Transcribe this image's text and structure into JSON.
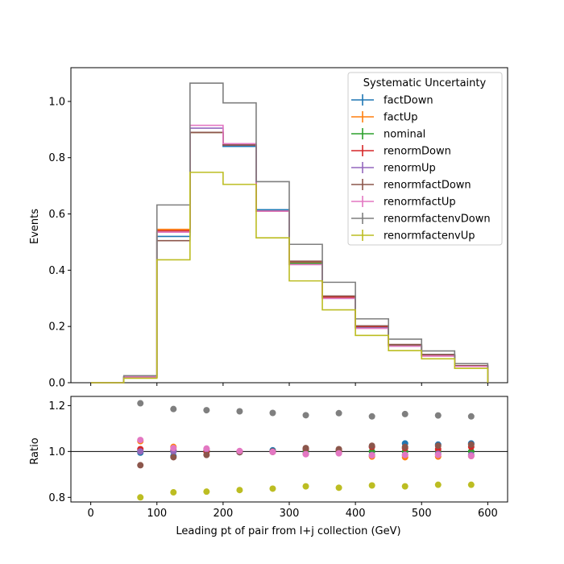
{
  "chart_data": {
    "type": "histogram_with_ratio",
    "main": {
      "ylabel": "Events",
      "ylim": [
        0,
        1.12
      ],
      "yticks": [
        "0.0",
        "0.2",
        "0.4",
        "0.6",
        "0.8",
        "1.0"
      ],
      "bin_edges": [
        0,
        50,
        100,
        150,
        200,
        250,
        300,
        350,
        400,
        450,
        500,
        550,
        600
      ],
      "series": [
        {
          "name": "factDown",
          "color": "#1f77b4",
          "values": [
            0.0,
            0.02,
            0.52,
            0.89,
            0.84,
            0.615,
            0.43,
            0.305,
            0.2,
            0.135,
            0.1,
            0.06
          ]
        },
        {
          "name": "factUp",
          "color": "#ff7f0e",
          "values": [
            0.0,
            0.02,
            0.545,
            0.89,
            0.845,
            0.61,
            0.425,
            0.305,
            0.195,
            0.13,
            0.095,
            0.058
          ]
        },
        {
          "name": "nominal",
          "color": "#2ca02c",
          "values": [
            0.0,
            0.02,
            0.535,
            0.89,
            0.845,
            0.61,
            0.425,
            0.305,
            0.197,
            0.133,
            0.097,
            0.059
          ]
        },
        {
          "name": "renormDown",
          "color": "#d62728",
          "values": [
            0.0,
            0.02,
            0.54,
            0.89,
            0.845,
            0.61,
            0.43,
            0.305,
            0.2,
            0.135,
            0.098,
            0.06
          ]
        },
        {
          "name": "renormUp",
          "color": "#9467bd",
          "values": [
            0.0,
            0.02,
            0.535,
            0.905,
            0.845,
            0.61,
            0.42,
            0.3,
            0.195,
            0.13,
            0.095,
            0.058
          ]
        },
        {
          "name": "renormfactDown",
          "color": "#8c564b",
          "values": [
            0.0,
            0.019,
            0.505,
            0.89,
            0.845,
            0.61,
            0.432,
            0.308,
            0.202,
            0.136,
            0.1,
            0.061
          ]
        },
        {
          "name": "renormfactUp",
          "color": "#e377c2",
          "values": [
            0.0,
            0.021,
            0.535,
            0.915,
            0.85,
            0.61,
            0.42,
            0.3,
            0.193,
            0.13,
            0.095,
            0.058
          ]
        },
        {
          "name": "renormfactenvDown",
          "color": "#7f7f7f",
          "values": [
            0.0,
            0.025,
            0.632,
            1.065,
            0.995,
            0.715,
            0.492,
            0.357,
            0.227,
            0.155,
            0.113,
            0.068
          ]
        },
        {
          "name": "renormfactenvUp",
          "color": "#bcbd22",
          "values": [
            0.0,
            0.016,
            0.437,
            0.748,
            0.705,
            0.515,
            0.362,
            0.259,
            0.168,
            0.114,
            0.085,
            0.051
          ]
        }
      ],
      "legend": {
        "title": "Systematic Uncertainty",
        "placement": "top-right"
      }
    },
    "ratio": {
      "ylabel": "Ratio",
      "xlabel": "Leading pt of pair from l+j collection (GeV)",
      "ylim": [
        0.78,
        1.24
      ],
      "yticks": [
        "0.8",
        "1.0",
        "1.2"
      ],
      "reference_line": 1.0,
      "x": [
        75,
        125,
        175,
        225,
        275,
        325,
        375,
        425,
        475,
        525,
        575
      ],
      "series": [
        {
          "name": "factDown",
          "color": "#1f77b4",
          "values": [
            0.995,
            0.98,
            1.0,
            0.997,
            1.005,
            1.01,
            1.005,
            1.02,
            1.035,
            1.03,
            1.035
          ]
        },
        {
          "name": "factUp",
          "color": "#ff7f0e",
          "values": [
            1.045,
            1.02,
            1.0,
            1.0,
            0.998,
            0.99,
            0.995,
            0.978,
            0.975,
            0.978,
            0.98
          ]
        },
        {
          "name": "nominal",
          "color": "#2ca02c",
          "values": [
            1.0,
            1.0,
            1.0,
            1.0,
            1.0,
            1.0,
            1.0,
            1.0,
            1.0,
            1.0,
            1.0
          ]
        },
        {
          "name": "renormDown",
          "color": "#d62728",
          "values": [
            1.01,
            1.005,
            1.0,
            1.0,
            1.0,
            1.012,
            1.005,
            1.02,
            1.015,
            1.01,
            1.02
          ]
        },
        {
          "name": "renormUp",
          "color": "#9467bd",
          "values": [
            1.0,
            1.0,
            1.01,
            1.0,
            0.998,
            0.99,
            0.993,
            0.985,
            0.985,
            0.99,
            0.985
          ]
        },
        {
          "name": "renormfactDown",
          "color": "#8c564b",
          "values": [
            0.94,
            0.975,
            0.985,
            0.997,
            1.0,
            1.015,
            1.01,
            1.025,
            1.02,
            1.025,
            1.03
          ]
        },
        {
          "name": "renormfactUp",
          "color": "#e377c2",
          "values": [
            1.05,
            1.015,
            1.013,
            1.002,
            0.998,
            0.988,
            0.992,
            0.983,
            0.985,
            0.985,
            0.98
          ]
        },
        {
          "name": "renormfactenvDown",
          "color": "#7f7f7f",
          "values": [
            1.21,
            1.185,
            1.18,
            1.175,
            1.168,
            1.158,
            1.167,
            1.153,
            1.163,
            1.157,
            1.153
          ]
        },
        {
          "name": "renormfactenvUp",
          "color": "#bcbd22",
          "values": [
            0.8,
            0.822,
            0.825,
            0.832,
            0.838,
            0.848,
            0.842,
            0.852,
            0.848,
            0.855,
            0.855
          ]
        }
      ]
    },
    "x_axis": {
      "xlim": [
        -30,
        630
      ],
      "xticks": [
        0,
        100,
        200,
        300,
        400,
        500,
        600
      ]
    }
  }
}
